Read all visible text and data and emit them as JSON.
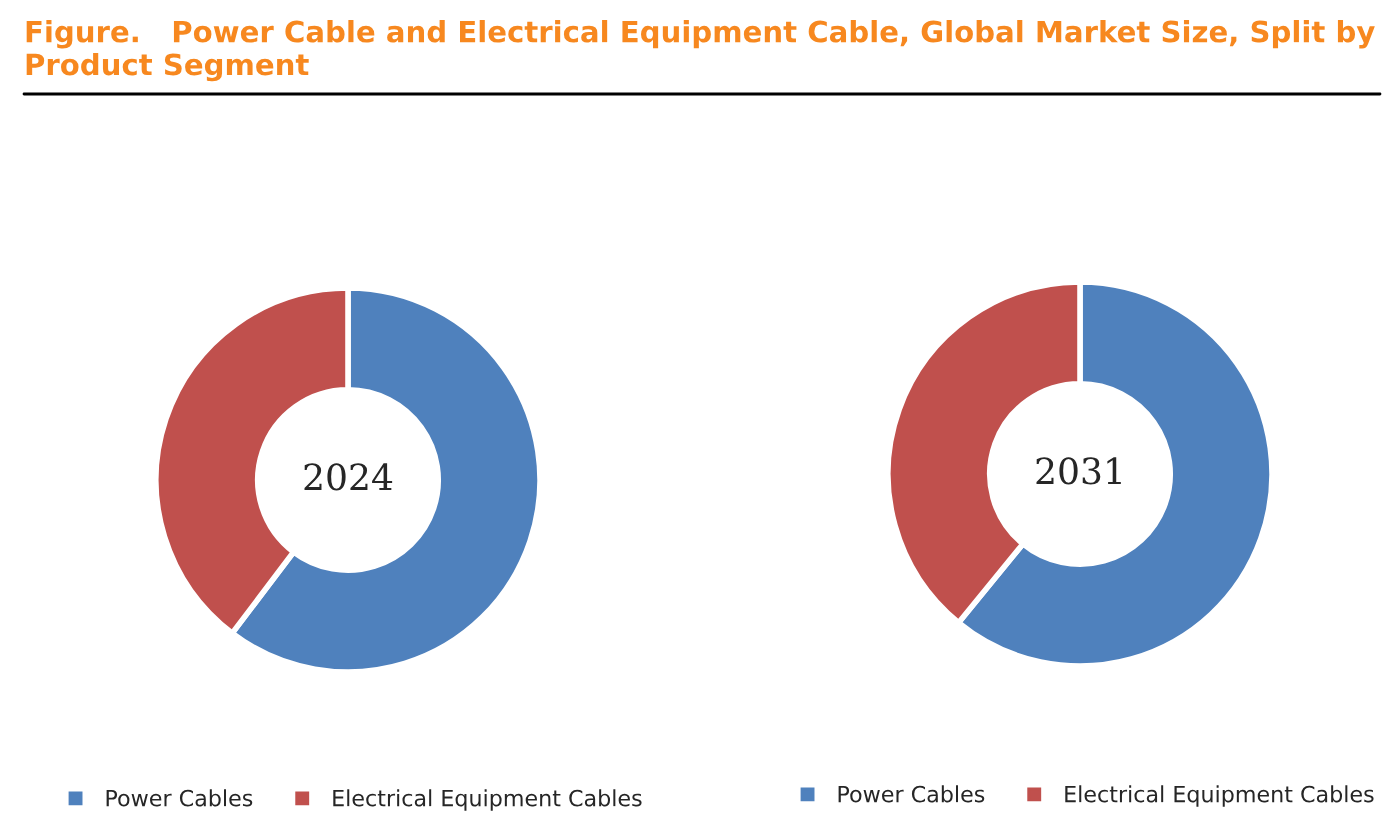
{
  "chart_data": [
    {
      "type": "donut",
      "title": "Figure.   Power Cable and Electrical Equipment Cable, Global Market Size, Split by Product Segment",
      "annotations": [
        "2024"
      ],
      "categories": [
        "Power Cables",
        "Electrical Equipment Cables"
      ],
      "values": [
        60.3,
        39.7
      ],
      "colors": [
        "#4f81bd",
        "#c0504d"
      ],
      "legend": "bottom"
    },
    {
      "type": "donut",
      "annotations": [
        "2031"
      ],
      "categories": [
        "Power Cables",
        "Electrical Equipment Cables"
      ],
      "values": [
        60.9,
        39.1
      ],
      "colors": [
        "#4f81bd",
        "#c0504d"
      ],
      "legend": "bottom"
    }
  ]
}
